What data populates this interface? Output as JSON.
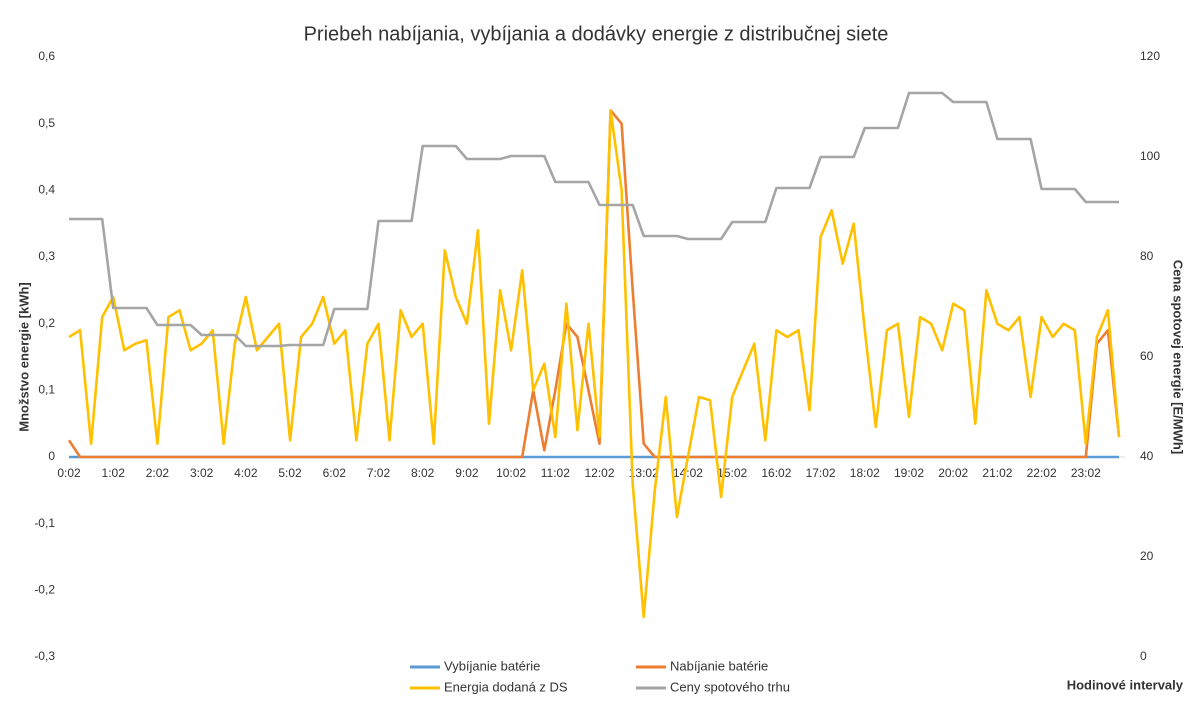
{
  "chart_data": {
    "type": "line",
    "title": "Priebeh nabíjania, vybíjania a dodávky energie z distribučnej siete",
    "y_label": "Množstvo energie [kWh]",
    "y2_label": "Cena spotovej energie [E/MWh]",
    "x_label": "Hodinové intervaly",
    "legend": "bottom",
    "categories": [
      "0:02",
      null,
      null,
      null,
      "1:02",
      null,
      null,
      null,
      "2:02",
      null,
      null,
      null,
      "3:02",
      null,
      null,
      null,
      "4:02",
      null,
      null,
      null,
      "5:02",
      null,
      null,
      null,
      "6:02",
      null,
      null,
      null,
      "7:02",
      null,
      null,
      null,
      "8:02",
      null,
      null,
      null,
      "9:02",
      null,
      null,
      null,
      "10:02",
      null,
      null,
      null,
      "11:02",
      null,
      null,
      null,
      "12:02",
      null,
      null,
      null,
      "13:02",
      null,
      null,
      null,
      "14:02",
      null,
      null,
      null,
      "15:02",
      null,
      null,
      null,
      "16:02",
      null,
      null,
      null,
      "17:02",
      null,
      null,
      null,
      "18:02",
      null,
      null,
      null,
      "19:02",
      null,
      null,
      null,
      "20:02",
      null,
      null,
      null,
      "21:02",
      null,
      null,
      null,
      "22:02",
      null,
      null,
      null,
      "23:02",
      null,
      null,
      null
    ],
    "ylim": [
      -0.3,
      0.6
    ],
    "yticks": [
      {
        "value": -0.3,
        "label": "-0,3"
      },
      {
        "value": -0.2,
        "label": "-0,2"
      },
      {
        "value": -0.1,
        "label": "-0,1"
      },
      0,
      {
        "value": 0.1,
        "label": "0,1"
      },
      {
        "value": 0.2,
        "label": "0,2"
      },
      {
        "value": 0.3,
        "label": "0,3"
      },
      {
        "value": 0.4,
        "label": "0,4"
      },
      {
        "value": 0.5,
        "label": "0,5"
      },
      {
        "value": 0.6,
        "label": "0,6"
      }
    ],
    "y2lim": [
      0,
      120
    ],
    "y2ticks": [
      0,
      20,
      40,
      60,
      80,
      100,
      120
    ],
    "series": [
      {
        "name": "Vybíjanie batérie",
        "color": "#5b9bd5",
        "values": [
          0,
          0,
          0,
          0,
          0,
          0,
          0,
          0,
          0,
          0,
          0,
          0,
          0,
          0,
          0,
          0,
          0,
          0,
          0,
          0,
          0,
          0,
          0,
          0,
          0,
          0,
          0,
          0,
          0,
          0,
          0,
          0,
          0,
          0,
          0,
          0,
          0,
          0,
          0,
          0,
          0,
          0,
          0,
          0,
          0,
          0,
          0,
          0,
          0,
          0,
          0,
          0,
          0,
          0,
          0,
          0,
          0,
          0,
          0,
          0,
          0,
          0,
          0,
          0,
          0,
          0,
          0,
          0,
          0,
          0,
          0,
          0,
          0,
          0,
          0,
          0,
          0,
          0,
          0,
          0,
          0,
          0,
          0,
          0,
          0,
          0,
          0,
          0,
          0,
          0,
          0,
          0,
          0,
          0,
          0,
          0
        ]
      },
      {
        "name": "Nabíjanie batérie",
        "color": "#ed7d31",
        "values": [
          0.025,
          0,
          0,
          0,
          0,
          0,
          0,
          0,
          0,
          0,
          0,
          0,
          0,
          0,
          0,
          0,
          0,
          0,
          0,
          0,
          0,
          0,
          0,
          0,
          0,
          0,
          0,
          0,
          0,
          0,
          0,
          0,
          0,
          0,
          0,
          0,
          0,
          0,
          0,
          0,
          0,
          0,
          0.1,
          0.01,
          0.1,
          0.2,
          0.18,
          0.1,
          0.02,
          0.52,
          0.5,
          0.25,
          0.02,
          0,
          0,
          0,
          0,
          0,
          0,
          0,
          0,
          0,
          0,
          0,
          0,
          0,
          0,
          0,
          0,
          0,
          0,
          0,
          0,
          0,
          0,
          0,
          0,
          0,
          0,
          0,
          0,
          0,
          0,
          0,
          0,
          0,
          0,
          0,
          0,
          0,
          0,
          0,
          0,
          0.17,
          0.19,
          0.03
        ]
      },
      {
        "name": "Energia dodaná z DS",
        "color": "#ffc000",
        "values": [
          0.18,
          0.19,
          0.02,
          0.21,
          0.24,
          0.16,
          0.17,
          0.175,
          0.02,
          0.21,
          0.22,
          0.16,
          0.17,
          0.19,
          0.02,
          0.17,
          0.24,
          0.16,
          0.18,
          0.2,
          0.025,
          0.18,
          0.2,
          0.24,
          0.17,
          0.19,
          0.025,
          0.17,
          0.2,
          0.025,
          0.22,
          0.18,
          0.2,
          0.02,
          0.31,
          0.24,
          0.2,
          0.34,
          0.05,
          0.25,
          0.16,
          0.28,
          0.1,
          0.14,
          0.03,
          0.23,
          0.04,
          0.2,
          0.03,
          0.52,
          0.4,
          -0.04,
          -0.24,
          -0.05,
          0.09,
          -0.09,
          0,
          0.09,
          0.085,
          -0.06,
          0.09,
          0.13,
          0.17,
          0.025,
          0.19,
          0.18,
          0.19,
          0.07,
          0.33,
          0.37,
          0.29,
          0.35,
          0.19,
          0.045,
          0.19,
          0.2,
          0.06,
          0.21,
          0.2,
          0.16,
          0.23,
          0.22,
          0.05,
          0.25,
          0.2,
          0.19,
          0.21,
          0.09,
          0.21,
          0.18,
          0.2,
          0.19,
          0.02,
          0.18,
          0.22,
          0.03
        ]
      },
      {
        "name": "Ceny spotového trhu",
        "color": "#a5a5a5",
        "axis": "y2",
        "values": [
          87.6,
          87.6,
          87.6,
          87.6,
          69.8,
          69.8,
          69.8,
          69.8,
          66.4,
          66.4,
          66.4,
          66.4,
          64.4,
          64.4,
          64.4,
          64.4,
          62.2,
          62.2,
          62.2,
          62.2,
          62.4,
          62.4,
          62.4,
          62.4,
          69.6,
          69.6,
          69.6,
          69.6,
          87.2,
          87.2,
          87.2,
          87.2,
          102.2,
          102.2,
          102.2,
          102.2,
          99.6,
          99.6,
          99.6,
          99.6,
          100.2,
          100.2,
          100.2,
          100.2,
          95,
          95,
          95,
          95,
          90.4,
          90.4,
          90.4,
          90.4,
          84.2,
          84.2,
          84.2,
          84.2,
          83.6,
          83.6,
          83.6,
          83.6,
          87,
          87,
          87,
          87,
          93.8,
          93.8,
          93.8,
          93.8,
          100,
          100,
          100,
          100,
          105.8,
          105.8,
          105.8,
          105.8,
          112.8,
          112.8,
          112.8,
          112.8,
          111,
          111,
          111,
          111,
          103.6,
          103.6,
          103.6,
          103.6,
          93.6,
          93.6,
          93.6,
          93.6,
          91,
          91,
          91,
          91
        ]
      }
    ]
  }
}
